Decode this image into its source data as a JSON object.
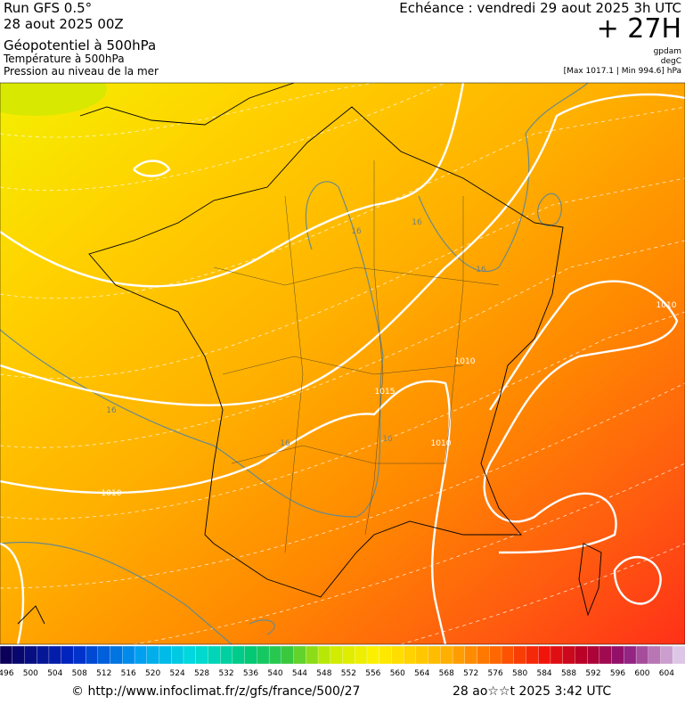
{
  "header": {
    "run": "Run GFS 0.5°",
    "run_date": "28 aout 2025 00Z",
    "field_1": "Géopotentiel à 500hPa",
    "field_2": "Température à 500hPa",
    "field_3": "Pression au niveau de la mer",
    "valid_time": "Echéance : vendredi 29 aout 2025 3h UTC",
    "lead": "+ 27H",
    "unit_1": "gpdam",
    "unit_2": "degC",
    "pressure_range": "[Max 1017.1 | Min 994.6] hPa"
  },
  "map": {
    "contour_labels": [
      "16",
      "16",
      "16",
      "16",
      "16",
      "16",
      "1010",
      "1010",
      "1010",
      "1010",
      "1015"
    ]
  },
  "legend": {
    "ticks": [
      496,
      500,
      504,
      508,
      512,
      516,
      520,
      524,
      528,
      532,
      536,
      540,
      544,
      548,
      552,
      556,
      560,
      564,
      568,
      572,
      576,
      580,
      584,
      588,
      592,
      596,
      600,
      604
    ]
  },
  "footer": {
    "source": "© http://www.infoclimat.fr/z/gfs/france/500/27",
    "generated": "28 ao☆☆t 2025  3:42 UTC"
  }
}
